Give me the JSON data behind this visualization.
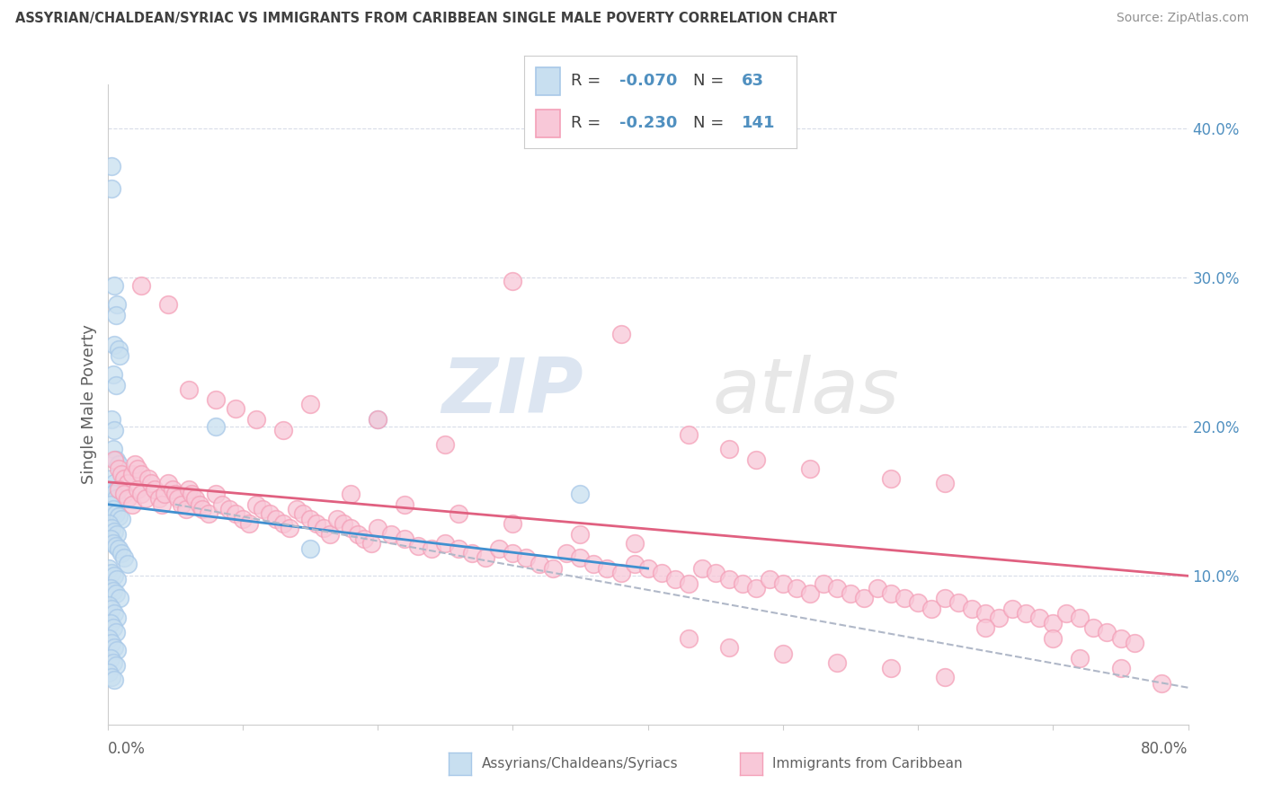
{
  "title": "ASSYRIAN/CHALDEAN/SYRIAC VS IMMIGRANTS FROM CARIBBEAN SINGLE MALE POVERTY CORRELATION CHART",
  "source": "Source: ZipAtlas.com",
  "ylabel": "Single Male Poverty",
  "ylabel_right_ticks": [
    "40.0%",
    "30.0%",
    "20.0%",
    "10.0%"
  ],
  "ylabel_right_vals": [
    0.4,
    0.3,
    0.2,
    0.1
  ],
  "xlim": [
    0.0,
    0.8
  ],
  "ylim": [
    0.0,
    0.43
  ],
  "color_blue": "#a8c8e8",
  "color_blue_fill": "#c8dff0",
  "color_pink": "#f4a0b8",
  "color_pink_fill": "#f8c8d8",
  "color_blue_line": "#4090d0",
  "color_pink_line": "#e06080",
  "color_dashed": "#b0b8c8",
  "watermark_zip": "ZIP",
  "watermark_atlas": "atlas",
  "grid_color": "#d8dce8",
  "background_color": "#ffffff",
  "title_color": "#404040",
  "source_color": "#909090",
  "axis_color": "#606060",
  "right_axis_color": "#5090c0",
  "blue_line_x": [
    0.0,
    0.4
  ],
  "blue_line_y": [
    0.148,
    0.105
  ],
  "pink_line_x": [
    0.0,
    0.8
  ],
  "pink_line_y": [
    0.163,
    0.1
  ],
  "dashed_line_x": [
    0.05,
    0.8
  ],
  "dashed_line_y": [
    0.148,
    0.025
  ],
  "blue_dots": [
    [
      0.003,
      0.375
    ],
    [
      0.003,
      0.36
    ],
    [
      0.005,
      0.295
    ],
    [
      0.007,
      0.282
    ],
    [
      0.006,
      0.275
    ],
    [
      0.005,
      0.255
    ],
    [
      0.008,
      0.252
    ],
    [
      0.009,
      0.248
    ],
    [
      0.004,
      0.235
    ],
    [
      0.006,
      0.228
    ],
    [
      0.003,
      0.205
    ],
    [
      0.005,
      0.198
    ],
    [
      0.004,
      0.185
    ],
    [
      0.006,
      0.178
    ],
    [
      0.008,
      0.175
    ],
    [
      0.003,
      0.165
    ],
    [
      0.005,
      0.162
    ],
    [
      0.007,
      0.158
    ],
    [
      0.004,
      0.155
    ],
    [
      0.006,
      0.152
    ],
    [
      0.002,
      0.148
    ],
    [
      0.004,
      0.145
    ],
    [
      0.006,
      0.142
    ],
    [
      0.008,
      0.14
    ],
    [
      0.01,
      0.138
    ],
    [
      0.001,
      0.135
    ],
    [
      0.003,
      0.132
    ],
    [
      0.005,
      0.13
    ],
    [
      0.007,
      0.128
    ],
    [
      0.002,
      0.125
    ],
    [
      0.004,
      0.122
    ],
    [
      0.006,
      0.12
    ],
    [
      0.008,
      0.118
    ],
    [
      0.01,
      0.115
    ],
    [
      0.012,
      0.112
    ],
    [
      0.015,
      0.108
    ],
    [
      0.001,
      0.105
    ],
    [
      0.003,
      0.102
    ],
    [
      0.005,
      0.1
    ],
    [
      0.007,
      0.098
    ],
    [
      0.002,
      0.092
    ],
    [
      0.004,
      0.09
    ],
    [
      0.006,
      0.088
    ],
    [
      0.009,
      0.085
    ],
    [
      0.001,
      0.08
    ],
    [
      0.003,
      0.078
    ],
    [
      0.005,
      0.075
    ],
    [
      0.007,
      0.072
    ],
    [
      0.002,
      0.068
    ],
    [
      0.004,
      0.065
    ],
    [
      0.006,
      0.062
    ],
    [
      0.001,
      0.058
    ],
    [
      0.003,
      0.055
    ],
    [
      0.005,
      0.052
    ],
    [
      0.007,
      0.05
    ],
    [
      0.002,
      0.045
    ],
    [
      0.004,
      0.042
    ],
    [
      0.006,
      0.04
    ],
    [
      0.001,
      0.035
    ],
    [
      0.003,
      0.032
    ],
    [
      0.005,
      0.03
    ],
    [
      0.08,
      0.2
    ],
    [
      0.15,
      0.118
    ],
    [
      0.2,
      0.205
    ],
    [
      0.35,
      0.155
    ]
  ],
  "pink_dots": [
    [
      0.005,
      0.178
    ],
    [
      0.008,
      0.172
    ],
    [
      0.01,
      0.168
    ],
    [
      0.012,
      0.165
    ],
    [
      0.015,
      0.162
    ],
    [
      0.018,
      0.168
    ],
    [
      0.02,
      0.175
    ],
    [
      0.022,
      0.172
    ],
    [
      0.025,
      0.168
    ],
    [
      0.008,
      0.158
    ],
    [
      0.012,
      0.155
    ],
    [
      0.015,
      0.152
    ],
    [
      0.018,
      0.148
    ],
    [
      0.022,
      0.158
    ],
    [
      0.025,
      0.155
    ],
    [
      0.028,
      0.152
    ],
    [
      0.03,
      0.165
    ],
    [
      0.032,
      0.162
    ],
    [
      0.035,
      0.158
    ],
    [
      0.038,
      0.152
    ],
    [
      0.04,
      0.148
    ],
    [
      0.042,
      0.155
    ],
    [
      0.045,
      0.162
    ],
    [
      0.048,
      0.158
    ],
    [
      0.05,
      0.155
    ],
    [
      0.052,
      0.152
    ],
    [
      0.055,
      0.148
    ],
    [
      0.058,
      0.145
    ],
    [
      0.06,
      0.158
    ],
    [
      0.062,
      0.155
    ],
    [
      0.065,
      0.152
    ],
    [
      0.068,
      0.148
    ],
    [
      0.07,
      0.145
    ],
    [
      0.075,
      0.142
    ],
    [
      0.08,
      0.155
    ],
    [
      0.085,
      0.148
    ],
    [
      0.09,
      0.145
    ],
    [
      0.095,
      0.142
    ],
    [
      0.1,
      0.138
    ],
    [
      0.105,
      0.135
    ],
    [
      0.11,
      0.148
    ],
    [
      0.115,
      0.145
    ],
    [
      0.12,
      0.142
    ],
    [
      0.125,
      0.138
    ],
    [
      0.13,
      0.135
    ],
    [
      0.135,
      0.132
    ],
    [
      0.14,
      0.145
    ],
    [
      0.145,
      0.142
    ],
    [
      0.15,
      0.138
    ],
    [
      0.155,
      0.135
    ],
    [
      0.16,
      0.132
    ],
    [
      0.165,
      0.128
    ],
    [
      0.17,
      0.138
    ],
    [
      0.175,
      0.135
    ],
    [
      0.18,
      0.132
    ],
    [
      0.185,
      0.128
    ],
    [
      0.19,
      0.125
    ],
    [
      0.195,
      0.122
    ],
    [
      0.2,
      0.132
    ],
    [
      0.21,
      0.128
    ],
    [
      0.22,
      0.125
    ],
    [
      0.23,
      0.12
    ],
    [
      0.24,
      0.118
    ],
    [
      0.25,
      0.122
    ],
    [
      0.26,
      0.118
    ],
    [
      0.27,
      0.115
    ],
    [
      0.28,
      0.112
    ],
    [
      0.29,
      0.118
    ],
    [
      0.3,
      0.115
    ],
    [
      0.31,
      0.112
    ],
    [
      0.32,
      0.108
    ],
    [
      0.33,
      0.105
    ],
    [
      0.34,
      0.115
    ],
    [
      0.35,
      0.112
    ],
    [
      0.36,
      0.108
    ],
    [
      0.37,
      0.105
    ],
    [
      0.38,
      0.102
    ],
    [
      0.39,
      0.108
    ],
    [
      0.4,
      0.105
    ],
    [
      0.41,
      0.102
    ],
    [
      0.42,
      0.098
    ],
    [
      0.43,
      0.095
    ],
    [
      0.44,
      0.105
    ],
    [
      0.45,
      0.102
    ],
    [
      0.46,
      0.098
    ],
    [
      0.47,
      0.095
    ],
    [
      0.48,
      0.092
    ],
    [
      0.49,
      0.098
    ],
    [
      0.5,
      0.095
    ],
    [
      0.51,
      0.092
    ],
    [
      0.52,
      0.088
    ],
    [
      0.53,
      0.095
    ],
    [
      0.54,
      0.092
    ],
    [
      0.55,
      0.088
    ],
    [
      0.56,
      0.085
    ],
    [
      0.57,
      0.092
    ],
    [
      0.58,
      0.088
    ],
    [
      0.59,
      0.085
    ],
    [
      0.6,
      0.082
    ],
    [
      0.61,
      0.078
    ],
    [
      0.62,
      0.085
    ],
    [
      0.63,
      0.082
    ],
    [
      0.64,
      0.078
    ],
    [
      0.65,
      0.075
    ],
    [
      0.66,
      0.072
    ],
    [
      0.67,
      0.078
    ],
    [
      0.68,
      0.075
    ],
    [
      0.69,
      0.072
    ],
    [
      0.7,
      0.068
    ],
    [
      0.71,
      0.075
    ],
    [
      0.72,
      0.072
    ],
    [
      0.73,
      0.065
    ],
    [
      0.74,
      0.062
    ],
    [
      0.75,
      0.058
    ],
    [
      0.76,
      0.055
    ],
    [
      0.025,
      0.295
    ],
    [
      0.045,
      0.282
    ],
    [
      0.3,
      0.298
    ],
    [
      0.38,
      0.262
    ],
    [
      0.43,
      0.195
    ],
    [
      0.46,
      0.185
    ],
    [
      0.48,
      0.178
    ],
    [
      0.52,
      0.172
    ],
    [
      0.58,
      0.165
    ],
    [
      0.62,
      0.162
    ],
    [
      0.65,
      0.065
    ],
    [
      0.7,
      0.058
    ],
    [
      0.72,
      0.045
    ],
    [
      0.75,
      0.038
    ],
    [
      0.78,
      0.028
    ],
    [
      0.06,
      0.225
    ],
    [
      0.08,
      0.218
    ],
    [
      0.095,
      0.212
    ],
    [
      0.11,
      0.205
    ],
    [
      0.13,
      0.198
    ],
    [
      0.15,
      0.215
    ],
    [
      0.2,
      0.205
    ],
    [
      0.25,
      0.188
    ],
    [
      0.18,
      0.155
    ],
    [
      0.22,
      0.148
    ],
    [
      0.26,
      0.142
    ],
    [
      0.3,
      0.135
    ],
    [
      0.35,
      0.128
    ],
    [
      0.39,
      0.122
    ],
    [
      0.43,
      0.058
    ],
    [
      0.46,
      0.052
    ],
    [
      0.5,
      0.048
    ],
    [
      0.54,
      0.042
    ],
    [
      0.58,
      0.038
    ],
    [
      0.62,
      0.032
    ]
  ]
}
